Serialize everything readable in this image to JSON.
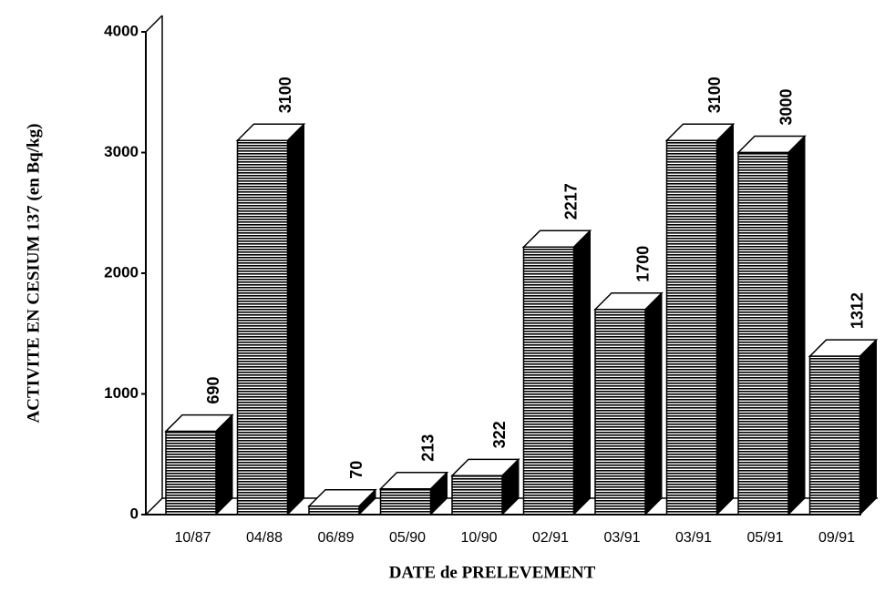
{
  "chart_data": {
    "type": "bar3d",
    "x_label": "DATE de PRELEVEMENT",
    "y_label": "ACTIVITE EN CESIUM 137 (en Bq/kg)",
    "categories": [
      "10/87",
      "04/88",
      "06/89",
      "05/90",
      "10/90",
      "02/91",
      "03/91",
      "03/91",
      "05/91",
      "09/91"
    ],
    "values": [
      690,
      3100,
      70,
      213,
      322,
      2217,
      1700,
      3100,
      3000,
      1312
    ],
    "ylim": [
      0,
      4000
    ],
    "yticks": [
      0,
      1000,
      2000,
      3000,
      4000
    ],
    "color": "#000000"
  }
}
